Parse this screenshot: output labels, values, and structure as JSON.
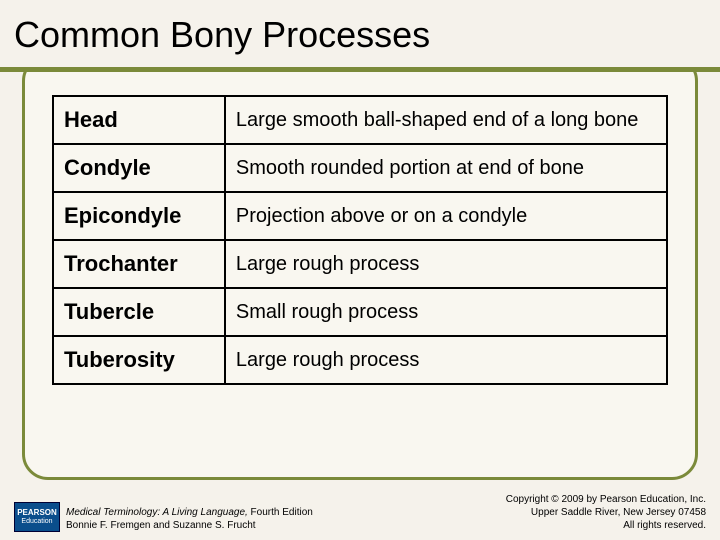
{
  "slide": {
    "title": "Common Bony Processes",
    "accent_color": "#7b8a3a",
    "background_color": "#f5f2eb",
    "panel_color": "#f9f7f0"
  },
  "table": {
    "rows": [
      {
        "term": "Head",
        "desc": "Large smooth ball-shaped end of a long bone"
      },
      {
        "term": "Condyle",
        "desc": "Smooth rounded portion at end of bone"
      },
      {
        "term": "Epicondyle",
        "desc": "Projection above or on a condyle"
      },
      {
        "term": "Trochanter",
        "desc": "Large rough process"
      },
      {
        "term": "Tubercle",
        "desc": "Small rough process"
      },
      {
        "term": "Tuberosity",
        "desc": "Large rough process"
      }
    ],
    "term_fontsize": 22,
    "desc_fontsize": 20,
    "border_color": "#000000"
  },
  "footer": {
    "logo_brand": "PEARSON",
    "logo_sub": "Education",
    "book_title": "Medical Terminology: A Living Language,",
    "book_edition": " Fourth Edition",
    "authors": "Bonnie F. Fremgen and Suzanne S. Frucht",
    "copyright_line1": "Copyright © 2009 by Pearson Education, Inc.",
    "copyright_line2": "Upper Saddle River, New Jersey 07458",
    "copyright_line3": "All rights reserved."
  }
}
